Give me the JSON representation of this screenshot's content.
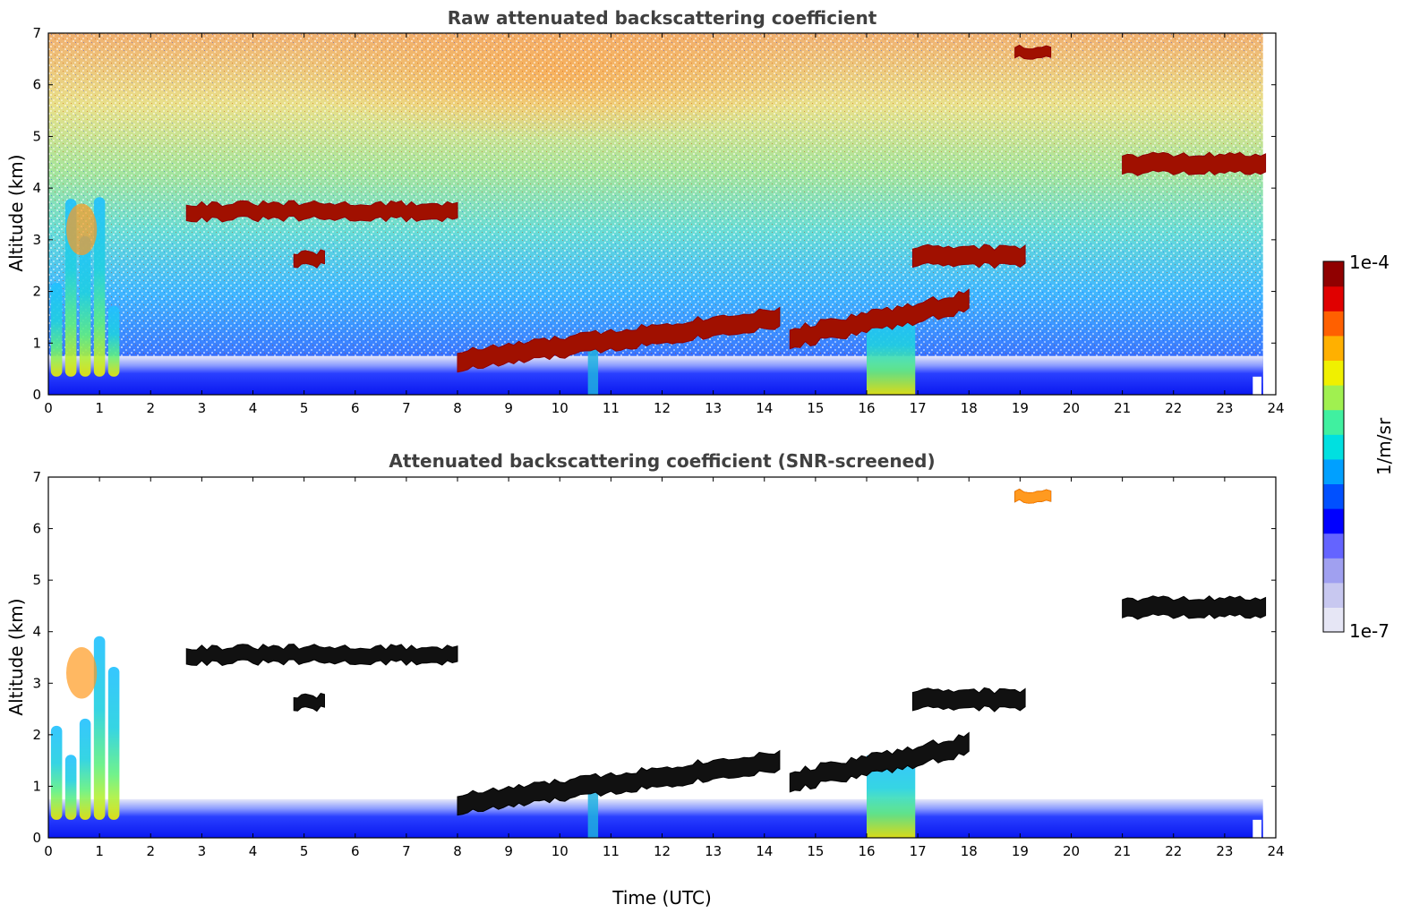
{
  "chart_data": [
    {
      "type": "heatmap",
      "title": "Raw attenuated backscattering coefficient",
      "xlabel": "",
      "ylabel": "Altitude (km)",
      "xlim": [
        0,
        24
      ],
      "ylim": [
        0,
        7
      ],
      "x_ticks": [
        "0",
        "1",
        "2",
        "3",
        "4",
        "5",
        "6",
        "7",
        "8",
        "9",
        "10",
        "11",
        "12",
        "13",
        "14",
        "15",
        "16",
        "17",
        "18",
        "19",
        "20",
        "21",
        "22",
        "23",
        "24"
      ],
      "y_ticks": [
        "0",
        "1",
        "2",
        "3",
        "4",
        "5",
        "6",
        "7"
      ],
      "screened": false
    },
    {
      "type": "heatmap",
      "title": "Attenuated backscattering coefficient (SNR-screened)",
      "xlabel": "Time (UTC)",
      "ylabel": "Altitude (km)",
      "xlim": [
        0,
        24
      ],
      "ylim": [
        0,
        7
      ],
      "x_ticks": [
        "0",
        "1",
        "2",
        "3",
        "4",
        "5",
        "6",
        "7",
        "8",
        "9",
        "10",
        "11",
        "12",
        "13",
        "14",
        "15",
        "16",
        "17",
        "18",
        "19",
        "20",
        "21",
        "22",
        "23",
        "24"
      ],
      "y_ticks": [
        "0",
        "1",
        "2",
        "3",
        "4",
        "5",
        "6",
        "7"
      ],
      "screened": true
    }
  ],
  "colorbar": {
    "label": "1/m/sr",
    "max_label": "1e-4",
    "min_label": "1e-7",
    "scale": "log",
    "colors": [
      "#e6e6f5",
      "#c8c8f0",
      "#a0a0f0",
      "#6464ff",
      "#0000ff",
      "#0050ff",
      "#00a0ff",
      "#00e0e0",
      "#40f0a0",
      "#a0f050",
      "#f0f000",
      "#ffb000",
      "#ff6000",
      "#e00000",
      "#900000"
    ]
  },
  "features": {
    "cloud_layers": [
      {
        "t": [
          2.7,
          8.0
        ],
        "alt": [
          3.4,
          3.7
        ]
      },
      {
        "t": [
          4.8,
          5.4
        ],
        "alt": [
          2.5,
          2.75
        ]
      },
      {
        "t": [
          8.0,
          14.3
        ],
        "alt": [
          0.65,
          1.5
        ]
      },
      {
        "t": [
          14.5,
          18.0
        ],
        "alt": [
          1.1,
          1.8
        ]
      },
      {
        "t": [
          16.9,
          19.1
        ],
        "alt": [
          2.5,
          2.85
        ]
      },
      {
        "t": [
          21.0,
          23.8
        ],
        "alt": [
          4.3,
          4.65
        ]
      },
      {
        "t": [
          18.9,
          19.6
        ],
        "alt": [
          6.55,
          6.75
        ]
      }
    ],
    "boundary_layer_top_km": 0.45
  }
}
